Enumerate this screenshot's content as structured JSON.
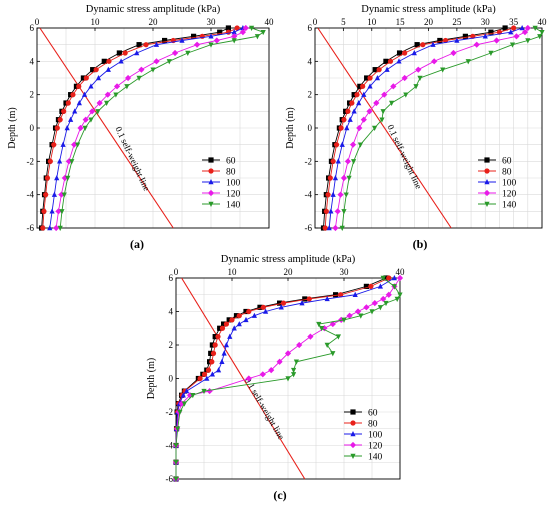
{
  "legend_colors": [
    "#000000",
    "#e8201a",
    "#1a1ae8",
    "#e81ae8",
    "#2a9a2a"
  ],
  "chart_data": [
    {
      "type": "line",
      "panel_label": "(a)",
      "title": "Dynamic stress amplitude (kPa)",
      "xlabel": "",
      "ylabel": "Depth (m)",
      "xlim": [
        0,
        40
      ],
      "ylim": [
        -6,
        6
      ],
      "xticks": [
        "0",
        "10",
        "20",
        "30",
        "40"
      ],
      "yticks": [
        "6",
        "4",
        "2",
        "0",
        "-2",
        "-4",
        "-6"
      ],
      "grid": true,
      "legend_position": "right-middle",
      "reference_line": {
        "label": "0.1 self-weight line",
        "x": [
          0.5,
          23.5
        ],
        "y": [
          6,
          -6
        ],
        "color": "#e8201a"
      },
      "series": [
        {
          "name": "60",
          "color": "#000000",
          "marker": "square",
          "x": [
            0.8,
            1.0,
            1.3,
            1.6,
            2.0,
            2.6,
            3.2,
            3.7,
            4.3,
            5.0,
            5.8,
            6.8,
            8.0,
            9.6,
            11.6,
            14.2,
            17.6,
            22.0,
            27.0,
            31.5,
            33.0
          ],
          "y": [
            -6,
            -5,
            -4,
            -3,
            -2,
            -1,
            0,
            0.5,
            1,
            1.5,
            2,
            2.5,
            3,
            3.5,
            4,
            4.5,
            5,
            5.25,
            5.5,
            5.75,
            6
          ]
        },
        {
          "name": "80",
          "color": "#e8201a",
          "marker": "circle",
          "x": [
            1.0,
            1.2,
            1.5,
            1.8,
            2.3,
            2.9,
            3.5,
            4.0,
            4.6,
            5.4,
            6.2,
            7.2,
            8.5,
            10.2,
            12.4,
            15.2,
            18.8,
            23.5,
            28.5,
            33.0,
            34.5
          ],
          "y": [
            -6,
            -5,
            -4,
            -3,
            -2,
            -1,
            0,
            0.5,
            1,
            1.5,
            2,
            2.5,
            3,
            3.5,
            4,
            4.5,
            5,
            5.25,
            5.5,
            5.75,
            6
          ]
        },
        {
          "name": "100",
          "color": "#1a1ae8",
          "marker": "triangle",
          "x": [
            2.2,
            2.6,
            3.0,
            3.4,
            3.9,
            4.5,
            5.2,
            5.8,
            6.5,
            7.3,
            8.2,
            9.3,
            10.6,
            12.3,
            14.5,
            17.2,
            20.6,
            25.0,
            30.0,
            34.0,
            35.5
          ],
          "y": [
            -6,
            -5,
            -4,
            -3,
            -2,
            -1,
            0,
            0.5,
            1,
            1.5,
            2,
            2.5,
            3,
            3.5,
            4,
            4.5,
            5,
            5.25,
            5.5,
            5.75,
            6
          ]
        },
        {
          "name": "120",
          "color": "#e81ae8",
          "marker": "diamond",
          "x": [
            3.3,
            3.7,
            4.2,
            4.8,
            5.5,
            6.4,
            7.5,
            8.4,
            9.5,
            10.8,
            12.2,
            13.8,
            15.7,
            18.0,
            20.6,
            23.8,
            27.6,
            31.0,
            34.0,
            35.5,
            36.0
          ],
          "y": [
            -6,
            -5,
            -4,
            -3,
            -2,
            -1,
            0,
            0.5,
            1,
            1.5,
            2,
            2.5,
            3,
            3.5,
            4,
            4.5,
            5,
            5.25,
            5.5,
            5.75,
            6
          ]
        },
        {
          "name": "140",
          "color": "#2a9a2a",
          "marker": "triangle-down",
          "x": [
            4.0,
            4.3,
            4.7,
            5.3,
            6.0,
            7.0,
            8.3,
            9.3,
            10.5,
            12.0,
            13.6,
            15.5,
            17.6,
            20.0,
            22.8,
            26.0,
            30.0,
            34.0,
            38.0,
            39.0,
            37.0
          ],
          "y": [
            -6,
            -5,
            -4,
            -3,
            -2,
            -1,
            0,
            0.5,
            1,
            1.5,
            2,
            2.5,
            3,
            3.5,
            4,
            4.5,
            5,
            5.25,
            5.5,
            5.75,
            6
          ]
        }
      ]
    },
    {
      "type": "line",
      "panel_label": "(b)",
      "title": "Dynamic stress amplitude (kPa)",
      "xlabel": "",
      "ylabel": "Depth (m)",
      "xlim": [
        0,
        40
      ],
      "ylim": [
        -6,
        6
      ],
      "xticks": [
        "0",
        "5",
        "10",
        "15",
        "20",
        "25",
        "30",
        "35",
        "40"
      ],
      "yticks": [
        "6",
        "4",
        "2",
        "0",
        "-2",
        "-4",
        "-6"
      ],
      "grid": true,
      "legend_position": "right-middle",
      "reference_line": {
        "label": "0.1 self-weight line",
        "x": [
          0.5,
          24.0
        ],
        "y": [
          6,
          -6
        ],
        "color": "#e8201a"
      },
      "series": [
        {
          "name": "60",
          "color": "#000000",
          "marker": "square",
          "x": [
            1.5,
            1.7,
            2.0,
            2.4,
            2.9,
            3.5,
            4.3,
            4.8,
            5.4,
            6.1,
            6.9,
            7.9,
            9.1,
            10.6,
            12.5,
            14.9,
            18.0,
            22.0,
            26.5,
            31.0,
            33.5
          ],
          "y": [
            -6,
            -5,
            -4,
            -3,
            -2,
            -1,
            0,
            0.5,
            1,
            1.5,
            2,
            2.5,
            3,
            3.5,
            4,
            4.5,
            5,
            5.25,
            5.5,
            5.75,
            6
          ]
        },
        {
          "name": "80",
          "color": "#e8201a",
          "marker": "circle",
          "x": [
            1.8,
            2.0,
            2.3,
            2.7,
            3.2,
            3.8,
            4.6,
            5.1,
            5.8,
            6.5,
            7.4,
            8.4,
            9.7,
            11.3,
            13.3,
            15.8,
            19.0,
            23.0,
            27.8,
            32.5,
            35.0
          ],
          "y": [
            -6,
            -5,
            -4,
            -3,
            -2,
            -1,
            0,
            0.5,
            1,
            1.5,
            2,
            2.5,
            3,
            3.5,
            4,
            4.5,
            5,
            5.25,
            5.5,
            5.75,
            6
          ]
        },
        {
          "name": "100",
          "color": "#1a1ae8",
          "marker": "triangle",
          "x": [
            2.5,
            2.8,
            3.2,
            3.6,
            4.1,
            4.8,
            5.6,
            6.2,
            6.9,
            7.7,
            8.6,
            9.7,
            11.0,
            12.7,
            14.8,
            17.5,
            20.8,
            25.0,
            30.0,
            34.5,
            36.5
          ],
          "y": [
            -6,
            -5,
            -4,
            -3,
            -2,
            -1,
            0,
            0.5,
            1,
            1.5,
            2,
            2.5,
            3,
            3.5,
            4,
            4.5,
            5,
            5.25,
            5.5,
            5.75,
            6
          ]
        },
        {
          "name": "120",
          "color": "#e81ae8",
          "marker": "diamond",
          "x": [
            3.6,
            4.0,
            4.5,
            5.1,
            5.8,
            6.7,
            7.8,
            8.6,
            9.6,
            10.8,
            12.2,
            13.8,
            15.8,
            18.2,
            21.0,
            24.4,
            28.5,
            32.0,
            35.5,
            37.0,
            37.5
          ],
          "y": [
            -6,
            -5,
            -4,
            -3,
            -2,
            -1,
            0,
            0.5,
            1,
            1.5,
            2,
            2.5,
            3,
            3.5,
            4,
            4.5,
            5,
            5.25,
            5.5,
            5.75,
            6
          ]
        },
        {
          "name": "140",
          "color": "#2a9a2a",
          "marker": "triangle-down",
          "x": [
            4.8,
            5.1,
            5.5,
            6.0,
            6.8,
            8.0,
            10.5,
            11.8,
            12.0,
            13.5,
            16.0,
            17.8,
            18.5,
            22.5,
            27.0,
            31.0,
            34.8,
            37.5,
            39.6,
            40.0,
            38.8
          ],
          "y": [
            -6,
            -5,
            -4,
            -3,
            -2,
            -1,
            0,
            0.5,
            1,
            1.5,
            2,
            2.5,
            3,
            3.5,
            4,
            4.5,
            5,
            5.25,
            5.5,
            5.75,
            6
          ]
        }
      ]
    },
    {
      "type": "line",
      "panel_label": "(c)",
      "title": "Dynamic stress amplitude (kPa)",
      "xlabel": "",
      "ylabel": "Depth (m)",
      "xlim": [
        0,
        40
      ],
      "ylim": [
        -6,
        6
      ],
      "xticks": [
        "0",
        "10",
        "20",
        "30",
        "40"
      ],
      "yticks": [
        "6",
        "4",
        "2",
        "0",
        "-2",
        "-4",
        "-6"
      ],
      "grid": true,
      "legend_position": "right-bottom",
      "reference_line": {
        "label": "0.1 self-weight line",
        "x": [
          1.0,
          23.0
        ],
        "y": [
          6,
          -6
        ],
        "color": "#e8201a"
      },
      "series": [
        {
          "name": "60",
          "color": "#000000",
          "marker": "square",
          "x": [
            0,
            0,
            0,
            0.1,
            0.2,
            0.4,
            1.0,
            1.5,
            4.0,
            4.8,
            5.5,
            6.0,
            6.2,
            6.5,
            7.0,
            7.8,
            8.5,
            9.5,
            10.8,
            12.5,
            15.0,
            18.5,
            23.0,
            28.5,
            34.0,
            37.5
          ],
          "y": [
            -6,
            -5,
            -4,
            -3,
            -2,
            -1.5,
            -1,
            -0.75,
            0,
            0.25,
            0.5,
            1,
            1.5,
            2,
            2.5,
            3,
            3.25,
            3.5,
            3.75,
            4,
            4.25,
            4.5,
            4.75,
            5,
            5.5,
            6
          ]
        },
        {
          "name": "80",
          "color": "#e8201a",
          "marker": "circle",
          "x": [
            0,
            0,
            0,
            0.1,
            0.3,
            0.5,
            1.1,
            1.6,
            4.3,
            5.1,
            5.8,
            6.4,
            6.7,
            7.0,
            7.5,
            8.3,
            9.0,
            10.0,
            11.3,
            13.0,
            15.6,
            19.2,
            23.8,
            29.4,
            34.8,
            38.0
          ],
          "y": [
            -6,
            -5,
            -4,
            -3,
            -2,
            -1.5,
            -1,
            -0.75,
            0,
            0.25,
            0.5,
            1,
            1.5,
            2,
            2.5,
            3,
            3.25,
            3.5,
            3.75,
            4,
            4.25,
            4.5,
            4.75,
            5,
            5.5,
            6
          ]
        },
        {
          "name": "100",
          "color": "#1a1ae8",
          "marker": "triangle",
          "x": [
            0,
            0,
            0,
            0.1,
            0.3,
            0.6,
            1.3,
            1.9,
            5.5,
            6.5,
            7.6,
            8.2,
            8.6,
            9.0,
            9.6,
            10.4,
            11.3,
            12.5,
            14.0,
            16.0,
            18.8,
            22.5,
            27.0,
            32.0,
            36.5,
            39.0
          ],
          "y": [
            -6,
            -5,
            -4,
            -3,
            -2,
            -1.5,
            -1,
            -0.75,
            0,
            0.25,
            0.5,
            1,
            1.5,
            2,
            2.5,
            3,
            3.25,
            3.5,
            3.75,
            4,
            4.25,
            4.5,
            4.75,
            5,
            5.5,
            6
          ]
        },
        {
          "name": "120",
          "color": "#e81ae8",
          "marker": "diamond",
          "x": [
            0,
            0,
            0,
            0.2,
            0.5,
            1.0,
            2.5,
            6.0,
            13.0,
            15.5,
            17.0,
            18.5,
            20.0,
            22.0,
            24.0,
            26.5,
            28.0,
            29.5,
            31.0,
            32.5,
            34.0,
            35.5,
            37.0,
            38.0,
            39.0,
            40.0
          ],
          "y": [
            -6,
            -5,
            -4,
            -3,
            -2,
            -1.5,
            -1,
            -0.75,
            0,
            0.25,
            0.5,
            1,
            1.5,
            2,
            2.5,
            3,
            3.25,
            3.5,
            3.75,
            4,
            4.25,
            4.5,
            4.75,
            5,
            5.5,
            6
          ]
        },
        {
          "name": "140",
          "color": "#2a9a2a",
          "marker": "triangle-down",
          "x": [
            0,
            0,
            0,
            0.3,
            0.7,
            1.5,
            3.0,
            5.0,
            20.0,
            21.0,
            21.0,
            21.5,
            28.0,
            27.0,
            29.0,
            26.0,
            25.5,
            30.0,
            33.0,
            35.0,
            36.5,
            37.5,
            39.5,
            40.0,
            39.0,
            37.0
          ],
          "y": [
            -6,
            -5,
            -4,
            -3,
            -2,
            -1.5,
            -1,
            -0.75,
            0,
            0.25,
            0.5,
            1,
            1.5,
            2,
            2.5,
            3,
            3.25,
            3.5,
            3.75,
            4,
            4.25,
            4.5,
            4.75,
            5,
            5.5,
            6
          ]
        }
      ]
    }
  ]
}
